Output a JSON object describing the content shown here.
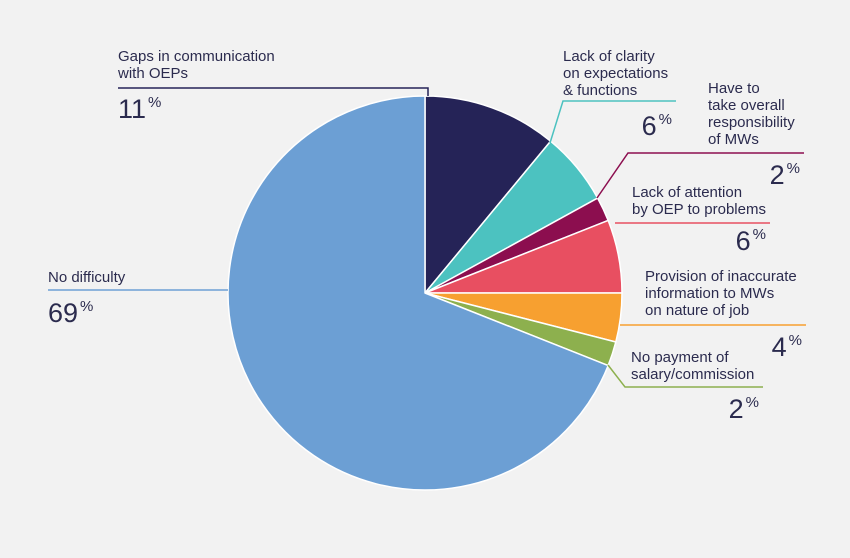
{
  "chart_data": {
    "type": "pie",
    "title": "",
    "slices": [
      {
        "label": "Gaps in communication with OEPs",
        "lines": [
          "Gaps in communication",
          "with OEPs"
        ],
        "value": 11,
        "color": "#252357"
      },
      {
        "label": "Lack of clarity on expectations & functions",
        "lines": [
          "Lack of clarity",
          "on expectations",
          "& functions"
        ],
        "value": 6,
        "color": "#4cc2c0"
      },
      {
        "label": "Have to take overall responsibility of MWs",
        "lines": [
          "Have to",
          "take overall",
          "responsibility",
          "of MWs"
        ],
        "value": 2,
        "color": "#8c0e4f"
      },
      {
        "label": "Lack of attention by OEP to problems",
        "lines": [
          "Lack of attention",
          "by OEP to problems"
        ],
        "value": 6,
        "color": "#e84f61"
      },
      {
        "label": "Provision of inaccurate information to MWs on nature of job",
        "lines": [
          "Provision of inaccurate",
          "information to MWs",
          "on nature of job"
        ],
        "value": 4,
        "color": "#f7a030"
      },
      {
        "label": "No payment of salary/commission",
        "lines": [
          "No payment of",
          "salary/commission"
        ],
        "value": 2,
        "color": "#8db04e"
      },
      {
        "label": "No difficulty",
        "lines": [
          "No difficulty"
        ],
        "value": 69,
        "color": "#6c9fd4"
      }
    ],
    "unit": "%"
  }
}
